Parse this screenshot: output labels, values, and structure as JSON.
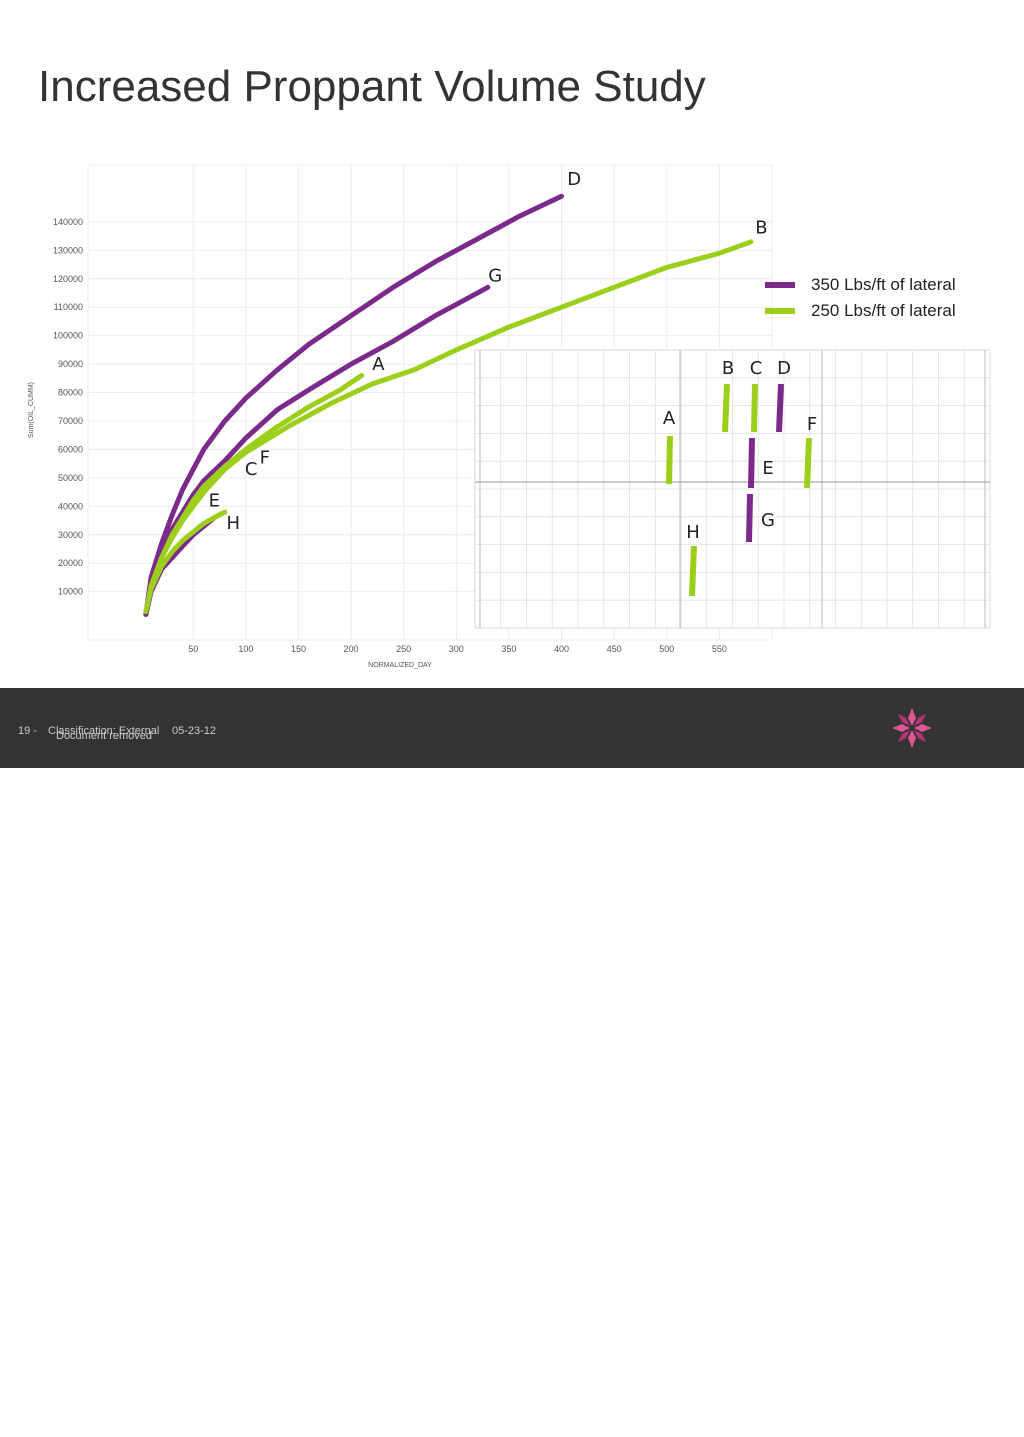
{
  "slide": {
    "title": "Increased Proppant Volume Study"
  },
  "legend": [
    {
      "label": "350 Lbs/ft of lateral",
      "color": "#7b2a8c"
    },
    {
      "label": "250 Lbs/ft of lateral",
      "color": "#9bcf1c"
    }
  ],
  "chart_data": {
    "type": "line",
    "xlabel": "NORMALIZED_DAY",
    "ylabel": "Sum(OIL_CUMM)",
    "xlim": [
      -50,
      600
    ],
    "ylim": [
      -7000,
      160000
    ],
    "x_ticks": [
      "50",
      "100",
      "150",
      "200",
      "250",
      "300",
      "350",
      "400",
      "450",
      "500",
      "550"
    ],
    "y_ticks": [
      "10000",
      "20000",
      "30000",
      "40000",
      "50000",
      "60000",
      "70000",
      "80000",
      "90000",
      "100000",
      "110000",
      "120000",
      "130000",
      "140000"
    ],
    "grid": true,
    "series": [
      {
        "name": "D",
        "color": "#7b2a8c",
        "x": [
          5,
          10,
          20,
          30,
          40,
          50,
          60,
          80,
          100,
          130,
          160,
          200,
          240,
          280,
          320,
          360,
          400
        ],
        "y": [
          2000,
          15000,
          27000,
          37000,
          46000,
          53000,
          60000,
          70000,
          78000,
          88000,
          97000,
          107000,
          117000,
          126000,
          134000,
          142000,
          149000
        ]
      },
      {
        "name": "G",
        "color": "#7b2a8c",
        "x": [
          5,
          10,
          20,
          30,
          40,
          50,
          60,
          80,
          100,
          130,
          160,
          200,
          240,
          280,
          300,
          330
        ],
        "y": [
          2000,
          13000,
          24000,
          32000,
          38000,
          44000,
          49000,
          56000,
          64000,
          74000,
          81000,
          90000,
          98000,
          107000,
          111000,
          117000
        ]
      },
      {
        "name": "B",
        "color": "#9bcf1c",
        "x": [
          5,
          10,
          20,
          30,
          40,
          50,
          60,
          80,
          100,
          140,
          180,
          220,
          260,
          300,
          350,
          400,
          450,
          500,
          550,
          580
        ],
        "y": [
          2000,
          12000,
          22000,
          29000,
          35000,
          40000,
          45000,
          53000,
          59000,
          68000,
          76000,
          83000,
          88000,
          95000,
          103000,
          110000,
          117000,
          124000,
          129000,
          133000
        ]
      },
      {
        "name": "A",
        "color": "#9bcf1c",
        "x": [
          5,
          10,
          20,
          30,
          40,
          50,
          60,
          80,
          100,
          130,
          160,
          190,
          210
        ],
        "y": [
          2000,
          12000,
          22000,
          30000,
          36000,
          42000,
          47000,
          54000,
          60000,
          68000,
          75000,
          81000,
          86000
        ]
      },
      {
        "name": "E",
        "color": "#7b2a8c",
        "x": [
          5,
          10,
          20,
          30,
          40,
          50,
          60,
          70
        ],
        "y": [
          2000,
          10000,
          18000,
          22000,
          26000,
          30000,
          33000,
          36000
        ]
      },
      {
        "name": "H",
        "color": "#9bcf1c",
        "x": [
          5,
          10,
          20,
          30,
          40,
          50,
          60,
          70,
          80
        ],
        "y": [
          3000,
          11000,
          19000,
          24000,
          28000,
          31000,
          34000,
          36000,
          38000
        ]
      }
    ],
    "labels": [
      {
        "text": "D",
        "x": 412,
        "y": 153000
      },
      {
        "text": "B",
        "x": 590,
        "y": 136000
      },
      {
        "text": "G",
        "x": 337,
        "y": 119000
      },
      {
        "text": "A",
        "x": 226,
        "y": 88000
      },
      {
        "text": "F",
        "x": 118,
        "y": 55000
      },
      {
        "text": "C",
        "x": 105,
        "y": 51000
      },
      {
        "text": "E",
        "x": 70,
        "y": 40000
      },
      {
        "text": "H",
        "x": 88,
        "y": 32000
      }
    ]
  },
  "well_map": {
    "labels": [
      {
        "text": "B",
        "color": "#9bcf1c"
      },
      {
        "text": "C",
        "color": "#9bcf1c"
      },
      {
        "text": "D",
        "color": "#7b2a8c"
      },
      {
        "text": "A",
        "color": "#9bcf1c"
      },
      {
        "text": "F",
        "color": "#9bcf1c"
      },
      {
        "text": "E",
        "color": "#7b2a8c"
      },
      {
        "text": "G",
        "color": "#7b2a8c"
      },
      {
        "text": "H",
        "color": "#9bcf1c"
      }
    ]
  },
  "footer": {
    "page": "19 -",
    "classification": "Classification: External",
    "overlap_text": "Document removed",
    "date": "05-23-12",
    "brand": "Statoil"
  }
}
